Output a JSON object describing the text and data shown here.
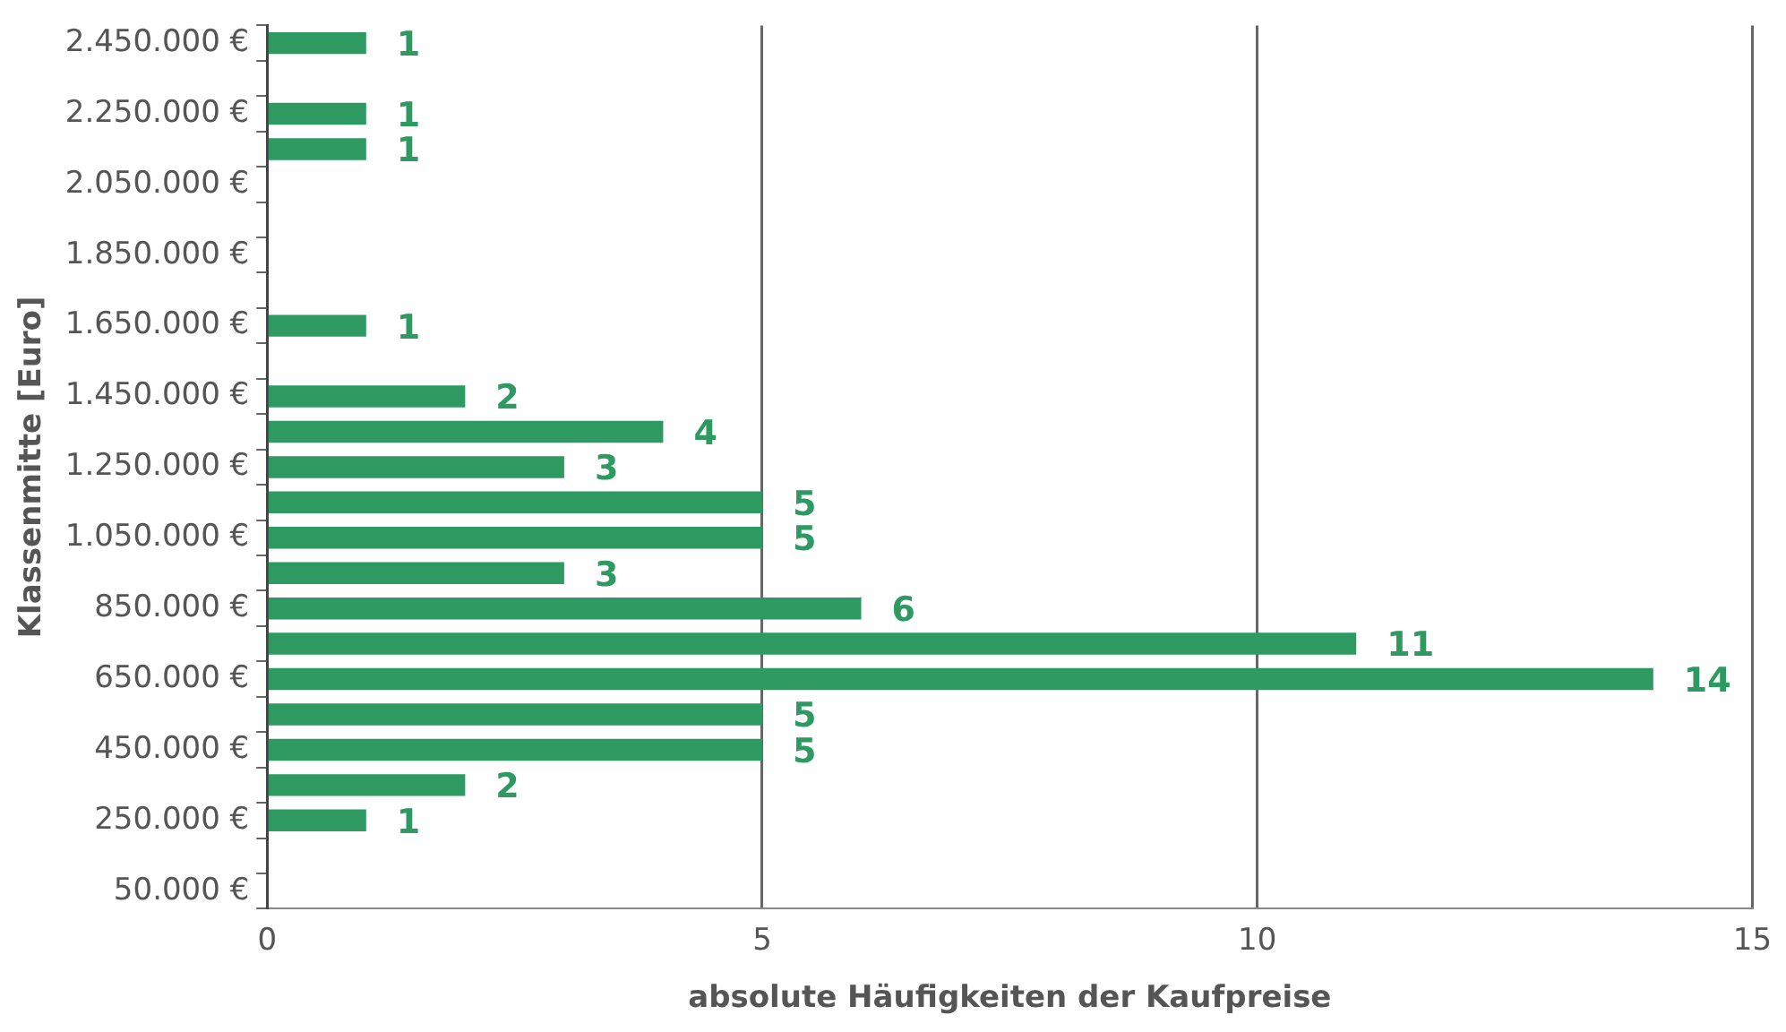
{
  "chart_data": {
    "type": "bar",
    "orientation": "horizontal",
    "xlabel": "absolute Häufigkeiten der Kaufpreise",
    "ylabel": "Klassenmitte [Euro]",
    "categories": [
      "2.450.000 €",
      null,
      "2.250.000 €",
      null,
      "2.050.000 €",
      null,
      "1.850.000 €",
      null,
      "1.650.000 €",
      null,
      "1.450.000 €",
      null,
      "1.250.000 €",
      null,
      "1.050.000 €",
      null,
      "850.000 €",
      null,
      "650.000 €",
      null,
      "450.000 €",
      null,
      "250.000 €",
      null,
      "50.000 €"
    ],
    "values": [
      1,
      null,
      1,
      1,
      null,
      null,
      null,
      null,
      1,
      null,
      2,
      4,
      3,
      5,
      5,
      3,
      6,
      11,
      14,
      5,
      5,
      2,
      1,
      null,
      null
    ],
    "color": "#2e9a62",
    "xlim": [
      0,
      15
    ],
    "xticks": [
      0,
      5,
      10,
      15
    ],
    "grid": "x",
    "data_labels": true
  }
}
